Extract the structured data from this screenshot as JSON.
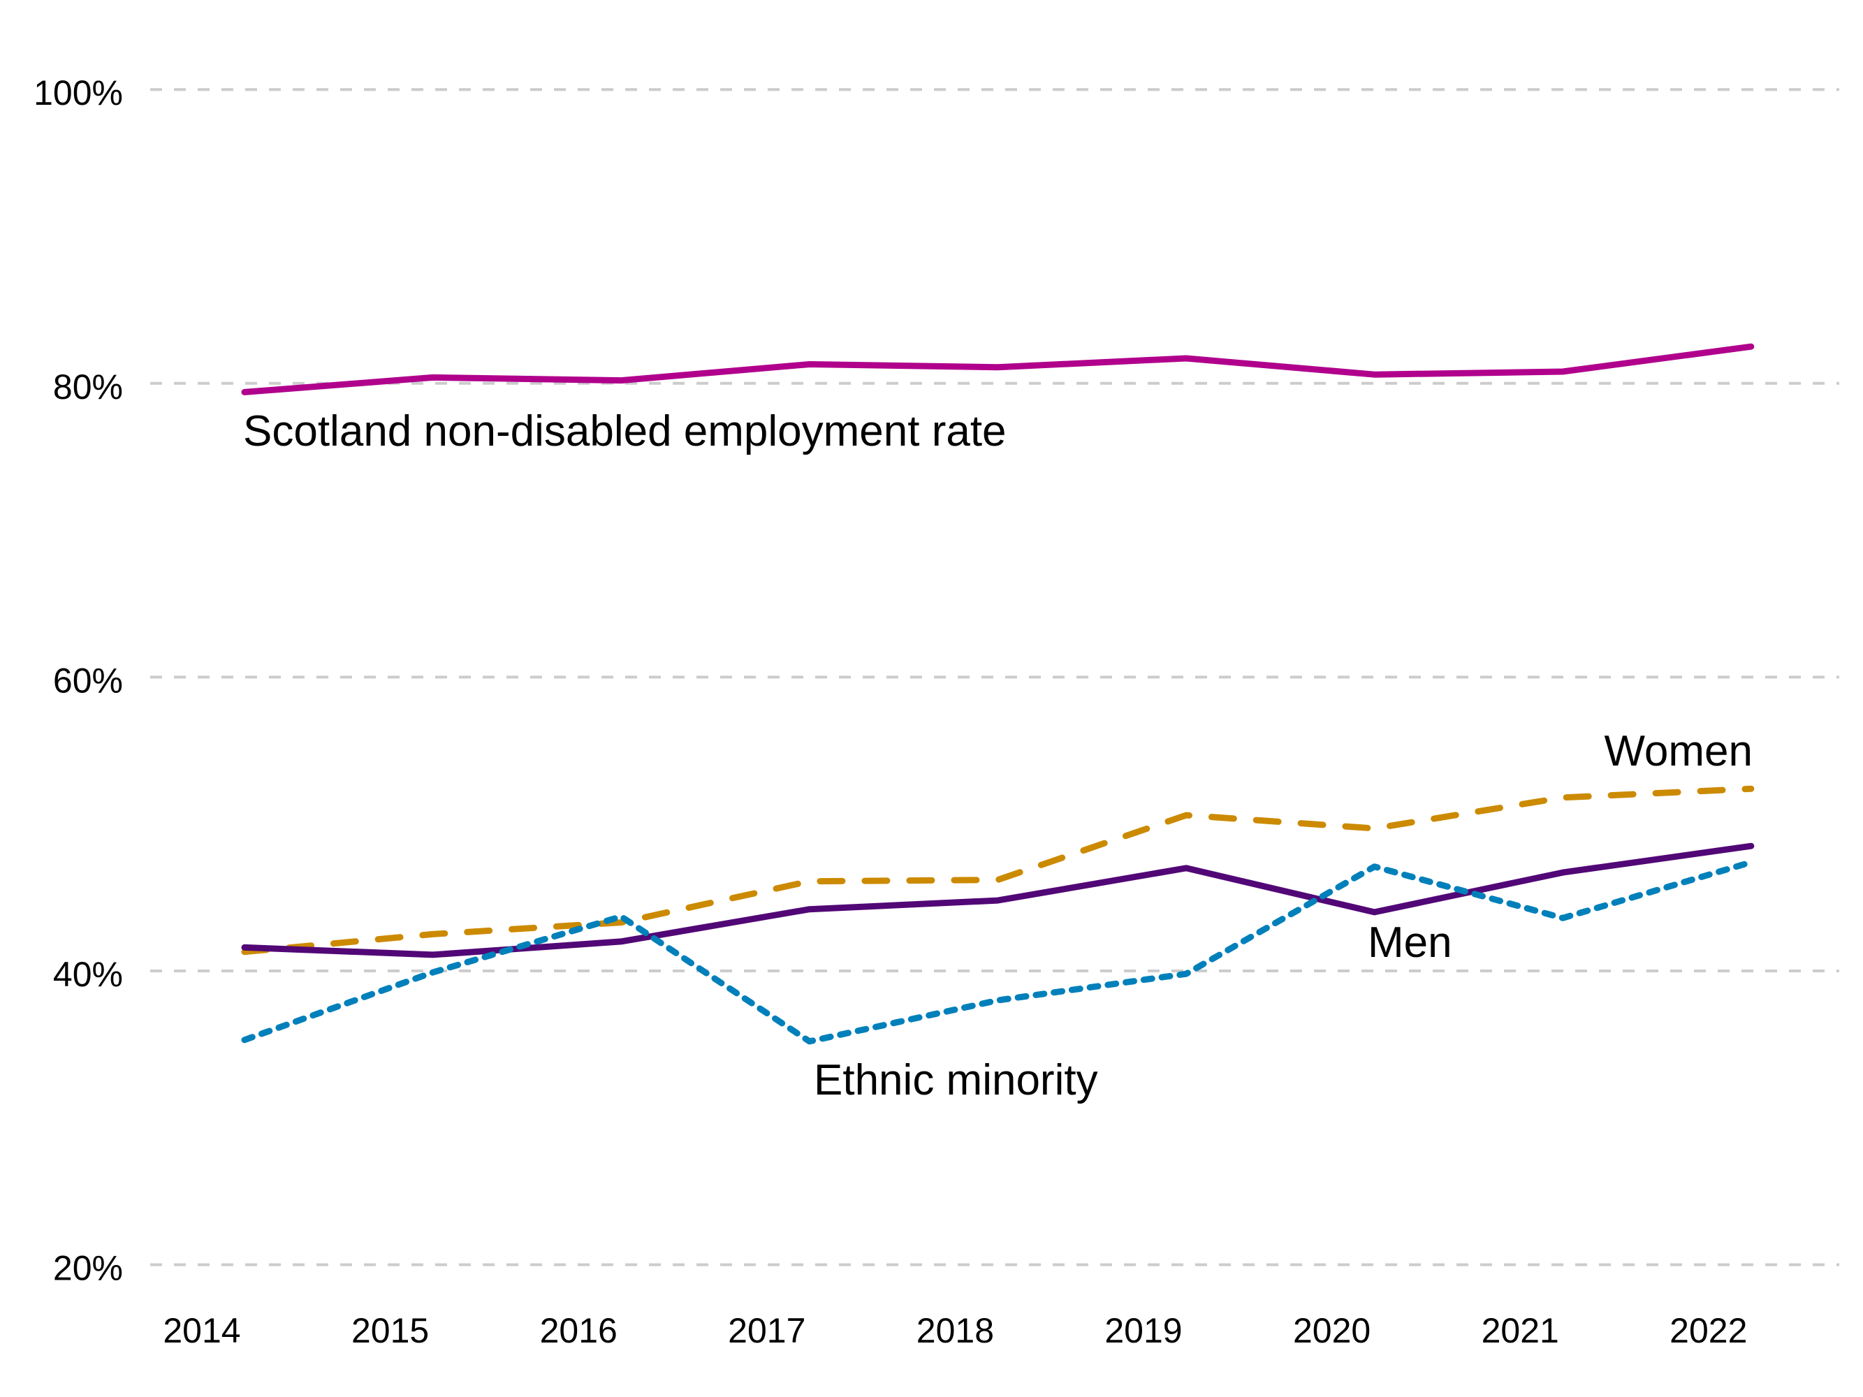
{
  "chart_data": {
    "type": "line",
    "title": "",
    "xlabel": "",
    "ylabel": "",
    "ylim": [
      20,
      100
    ],
    "yticks": [
      20,
      40,
      60,
      80,
      100
    ],
    "ytick_labels": [
      "20%",
      "40%",
      "60%",
      "80%",
      "100%"
    ],
    "grid": true,
    "grid_axis": "y",
    "legend": "none (direct labels)",
    "x": [
      "2014",
      "2015",
      "2016",
      "2017",
      "2018",
      "2019",
      "2020",
      "2021",
      "2022"
    ],
    "xtick_labels": [
      "2014",
      "2015",
      "2016",
      "2017",
      "2018",
      "2019",
      "2020",
      "2021",
      "2022"
    ],
    "series": [
      {
        "name": "Scotland non-disabled employment rate",
        "label": "Scotland non-disabled employment rate",
        "color": "#b0008c",
        "style": "solid",
        "values": [
          79.4,
          80.4,
          80.2,
          81.3,
          81.1,
          81.7,
          80.6,
          80.8,
          82.5
        ]
      },
      {
        "name": "Women",
        "label": "Women",
        "color": "#cc8a00",
        "style": "dashed",
        "values": [
          41.3,
          42.5,
          43.3,
          46.1,
          46.2,
          50.6,
          49.7,
          51.8,
          52.4
        ]
      },
      {
        "name": "Men",
        "label": "Men",
        "color": "#520776",
        "style": "solid",
        "values": [
          41.6,
          41.1,
          42.0,
          44.2,
          44.8,
          47.0,
          44.0,
          46.7,
          48.5
        ]
      },
      {
        "name": "Ethnic minority",
        "label": "Ethnic minority",
        "color": "#0080ba",
        "style": "dotted",
        "values": [
          35.3,
          39.9,
          43.7,
          35.2,
          38.0,
          39.8,
          47.1,
          43.6,
          47.4
        ]
      }
    ]
  }
}
